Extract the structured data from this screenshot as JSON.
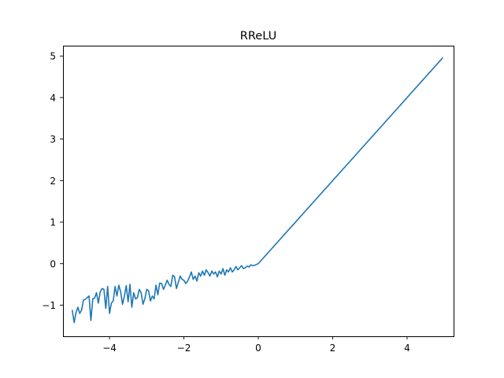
{
  "chart_data": {
    "type": "line",
    "title": "RReLU",
    "xlabel": "",
    "ylabel": "",
    "xlim": [
      -5.25,
      5.25
    ],
    "ylim": [
      -1.75,
      5.25
    ],
    "grid": false,
    "xticks": [
      -4,
      -2,
      0,
      2,
      4
    ],
    "yticks": [
      -1,
      0,
      1,
      2,
      3,
      4,
      5
    ],
    "xtick_labels": [
      "−4",
      "−2",
      "0",
      "2",
      "4"
    ],
    "ytick_labels": [
      "−1",
      "0",
      "1",
      "2",
      "3",
      "4",
      "5"
    ],
    "line_color": "#1f77b4",
    "series": [
      {
        "x": [
          -5.0,
          -4.95,
          -4.9,
          -4.85,
          -4.8,
          -4.75,
          -4.7,
          -4.65,
          -4.6,
          -4.55,
          -4.5,
          -4.45,
          -4.4,
          -4.35,
          -4.3,
          -4.25,
          -4.2,
          -4.15,
          -4.1,
          -4.05,
          -4.0,
          -3.95,
          -3.9,
          -3.85,
          -3.8,
          -3.75,
          -3.7,
          -3.65,
          -3.6,
          -3.55,
          -3.5,
          -3.45,
          -3.4,
          -3.35,
          -3.3,
          -3.25,
          -3.2,
          -3.15,
          -3.1,
          -3.05,
          -3.0,
          -2.95,
          -2.9,
          -2.85,
          -2.8,
          -2.75,
          -2.7,
          -2.65,
          -2.6,
          -2.55,
          -2.5,
          -2.45,
          -2.4,
          -2.35,
          -2.3,
          -2.25,
          -2.2,
          -2.15,
          -2.1,
          -2.05,
          -2.0,
          -1.95,
          -1.9,
          -1.85,
          -1.8,
          -1.75,
          -1.7,
          -1.65,
          -1.6,
          -1.55,
          -1.5,
          -1.45,
          -1.4,
          -1.35,
          -1.3,
          -1.25,
          -1.2,
          -1.15,
          -1.1,
          -1.05,
          -1.0,
          -0.95,
          -0.9,
          -0.85,
          -0.8,
          -0.75,
          -0.7,
          -0.65,
          -0.6,
          -0.55,
          -0.5,
          -0.45,
          -0.4,
          -0.35,
          -0.3,
          -0.25,
          -0.2,
          -0.15,
          -0.1,
          -0.05,
          0.0,
          4.95
        ],
        "y": [
          -1.13,
          -1.42,
          -1.18,
          -1.05,
          -1.2,
          -1.12,
          -0.88,
          -0.86,
          -0.82,
          -0.78,
          -1.37,
          -0.85,
          -0.83,
          -0.7,
          -0.95,
          -0.68,
          -0.6,
          -0.62,
          -1.08,
          -0.55,
          -1.2,
          -0.95,
          -0.9,
          -0.55,
          -0.78,
          -0.52,
          -0.68,
          -0.98,
          -0.78,
          -0.53,
          -0.92,
          -0.5,
          -1.05,
          -0.7,
          -0.85,
          -0.82,
          -0.62,
          -0.7,
          -0.98,
          -0.85,
          -0.62,
          -0.65,
          -0.9,
          -0.78,
          -0.85,
          -0.52,
          -0.75,
          -0.47,
          -0.48,
          -0.62,
          -0.52,
          -0.4,
          -0.5,
          -0.55,
          -0.28,
          -0.32,
          -0.6,
          -0.45,
          -0.3,
          -0.38,
          -0.4,
          -0.48,
          -0.42,
          -0.32,
          -0.2,
          -0.38,
          -0.3,
          -0.42,
          -0.22,
          -0.3,
          -0.18,
          -0.28,
          -0.15,
          -0.22,
          -0.3,
          -0.18,
          -0.25,
          -0.2,
          -0.32,
          -0.18,
          -0.25,
          -0.12,
          -0.28,
          -0.15,
          -0.2,
          -0.1,
          -0.2,
          -0.15,
          -0.07,
          -0.15,
          -0.1,
          -0.05,
          -0.12,
          -0.1,
          -0.06,
          -0.08,
          -0.03,
          -0.05,
          -0.04,
          -0.02,
          0.0,
          4.95
        ]
      }
    ]
  }
}
